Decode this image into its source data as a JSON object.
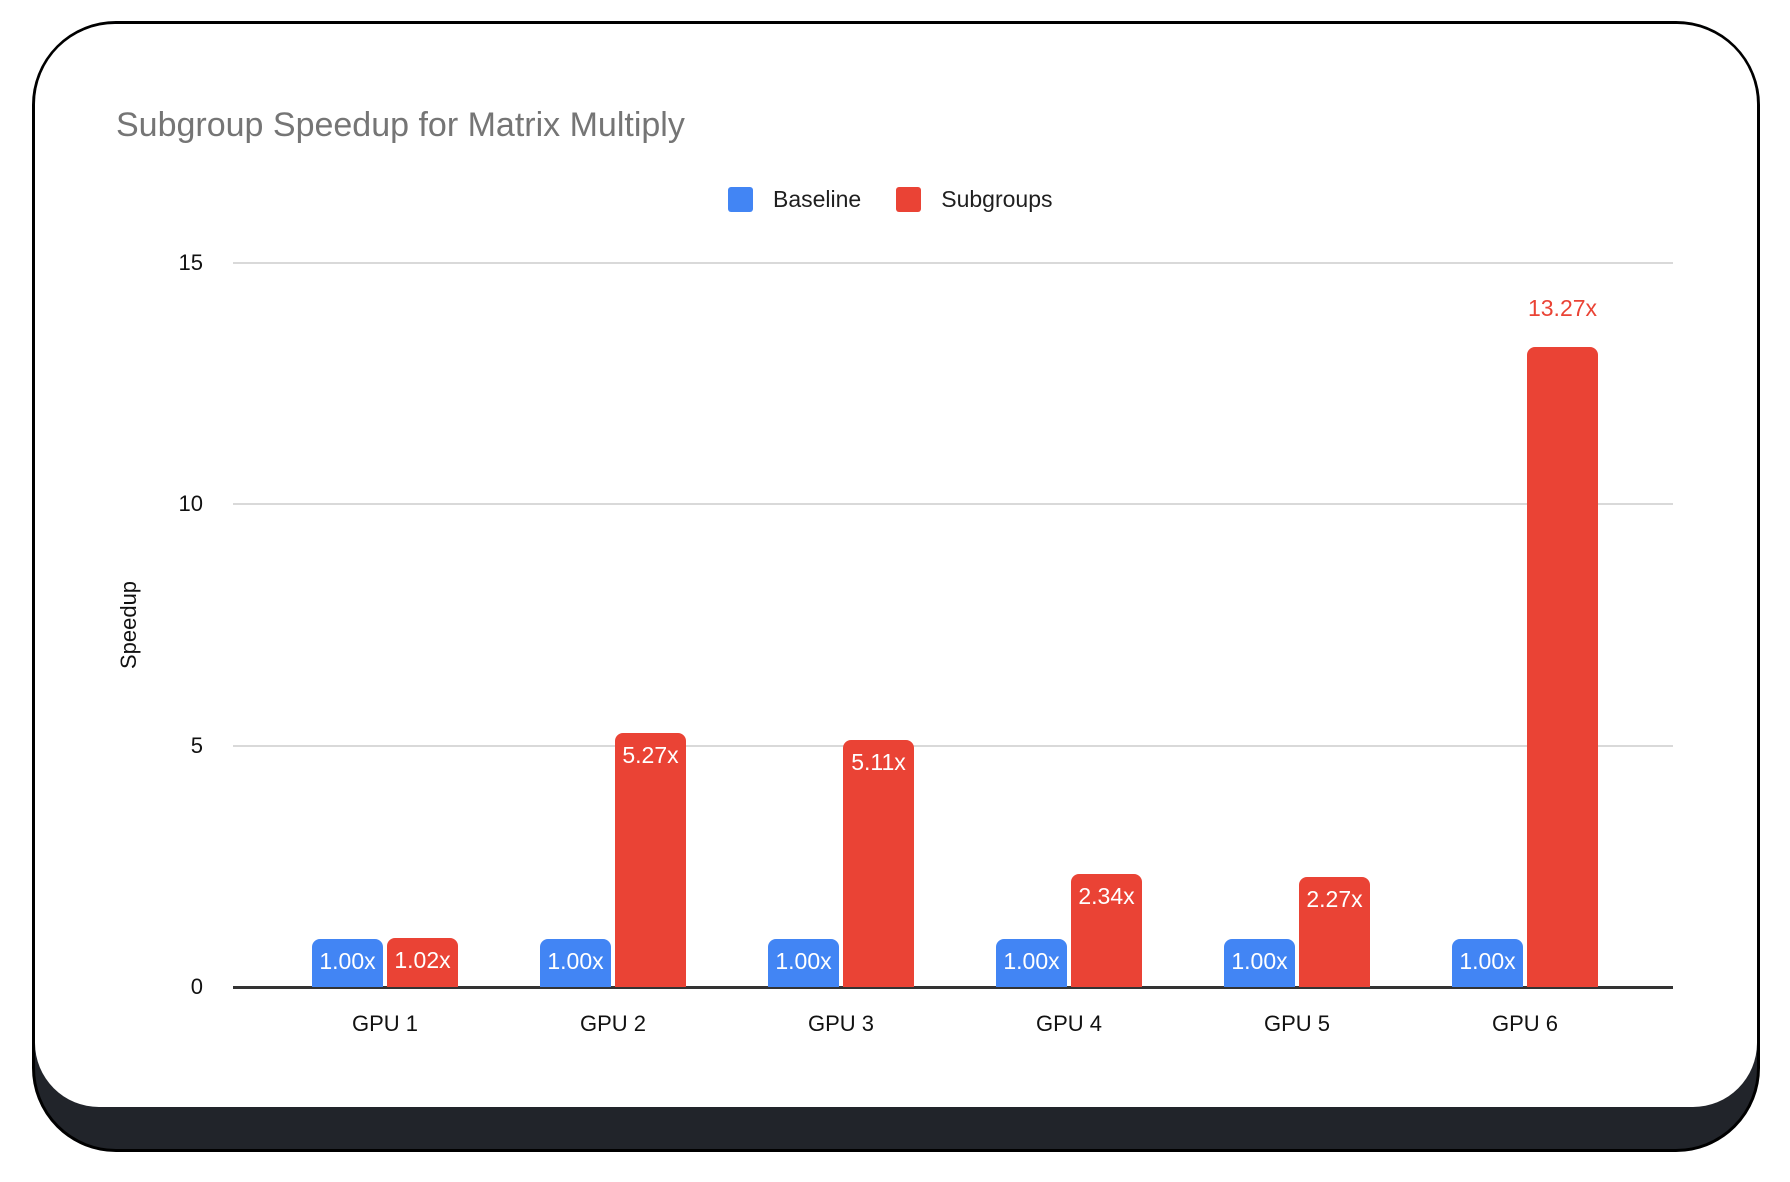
{
  "chart_data": {
    "type": "bar",
    "title": "Subgroup Speedup for Matrix Multiply",
    "title_color": "#757575",
    "xlabel": "",
    "ylabel": "Speedup",
    "ylim": [
      0,
      15
    ],
    "grid": true,
    "legend_position": "top",
    "categories": [
      "GPU 1",
      "GPU 2",
      "GPU 3",
      "GPU 4",
      "GPU 5",
      "GPU 6"
    ],
    "series": [
      {
        "name": "Baseline",
        "color": "#4285F4",
        "values": [
          1.0,
          1.0,
          1.0,
          1.0,
          1.0,
          1.0
        ],
        "labels": [
          "1.00x",
          "1.00x",
          "1.00x",
          "1.00x",
          "1.00x",
          "1.00x"
        ],
        "outside_labels": [
          false,
          false,
          false,
          false,
          false,
          false
        ]
      },
      {
        "name": "Subgroups",
        "color": "#EA4335",
        "values": [
          1.02,
          5.27,
          5.11,
          2.34,
          2.27,
          13.27
        ],
        "labels": [
          "1.02x",
          "5.27x",
          "5.11x",
          "2.34x",
          "2.27x",
          "13.27x"
        ],
        "outside_labels": [
          false,
          false,
          false,
          false,
          false,
          true
        ]
      }
    ],
    "yticks": [
      {
        "value": 0,
        "label": "0"
      },
      {
        "value": 5,
        "label": "5"
      },
      {
        "value": 10,
        "label": "10"
      },
      {
        "value": 15,
        "label": "15"
      }
    ],
    "value_label_color_inside": "#ffffff"
  }
}
